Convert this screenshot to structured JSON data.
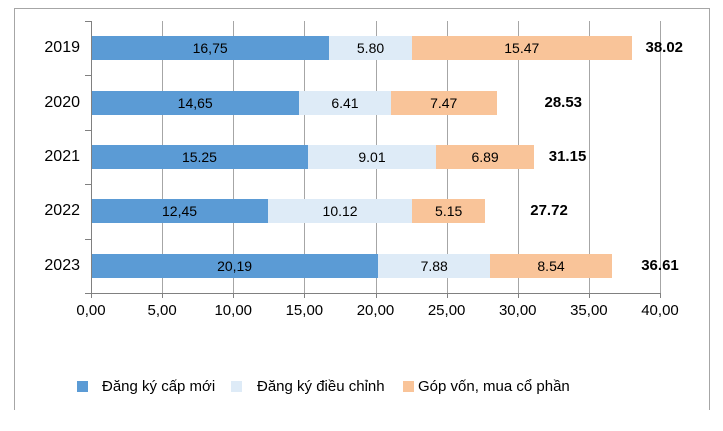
{
  "chart_data": {
    "type": "bar",
    "orientation": "horizontal",
    "stacked": true,
    "title": "",
    "categories": [
      "2019",
      "2020",
      "2021",
      "2022",
      "2023"
    ],
    "series": [
      {
        "name": "Đăng ký cấp mới",
        "color": "#5B9BD5",
        "values": [
          16.75,
          14.65,
          15.25,
          12.45,
          20.19
        ],
        "labels": [
          "16,75",
          "14,65",
          "15.25",
          "12,45",
          "20,19"
        ]
      },
      {
        "name": "Đăng ký điều chỉnh",
        "color": "#DEEBF7",
        "values": [
          5.8,
          6.41,
          9.01,
          10.12,
          7.88
        ],
        "labels": [
          "5.80",
          "6.41",
          "9.01",
          "10.12",
          "7.88"
        ]
      },
      {
        "name": "Góp vốn, mua cổ phần",
        "color": "#F9C499",
        "values": [
          15.47,
          7.47,
          6.89,
          5.15,
          8.54
        ],
        "labels": [
          "15.47",
          "7.47",
          "6.89",
          "5.15",
          "8.54"
        ]
      }
    ],
    "totals": [
      {
        "value": 38.02,
        "label": "38.02",
        "center_units": 40.3
      },
      {
        "value": 28.53,
        "label": "28.53",
        "center_units": 33.2
      },
      {
        "value": 31.15,
        "label": "31.15",
        "center_units": 33.5
      },
      {
        "value": 27.72,
        "label": "27.72",
        "center_units": 32.2
      },
      {
        "value": 36.61,
        "label": "36.61",
        "center_units": 40.0
      }
    ],
    "x_ticks": [
      {
        "value": 0,
        "label": "0,00"
      },
      {
        "value": 5,
        "label": "5,00"
      },
      {
        "value": 10,
        "label": "10,00"
      },
      {
        "value": 15,
        "label": "15,00"
      },
      {
        "value": 20,
        "label": "20,00"
      },
      {
        "value": 25,
        "label": "25,00"
      },
      {
        "value": 30,
        "label": "30,00"
      },
      {
        "value": 35,
        "label": "35,00"
      },
      {
        "value": 40,
        "label": "40,00"
      }
    ],
    "xlim": [
      0,
      40
    ],
    "grid": true,
    "legend_position": "bottom"
  },
  "colors": {
    "border": "#A6A6A6",
    "gridline": "#A6A6A6",
    "axis": "#808080",
    "text": "#000000"
  }
}
